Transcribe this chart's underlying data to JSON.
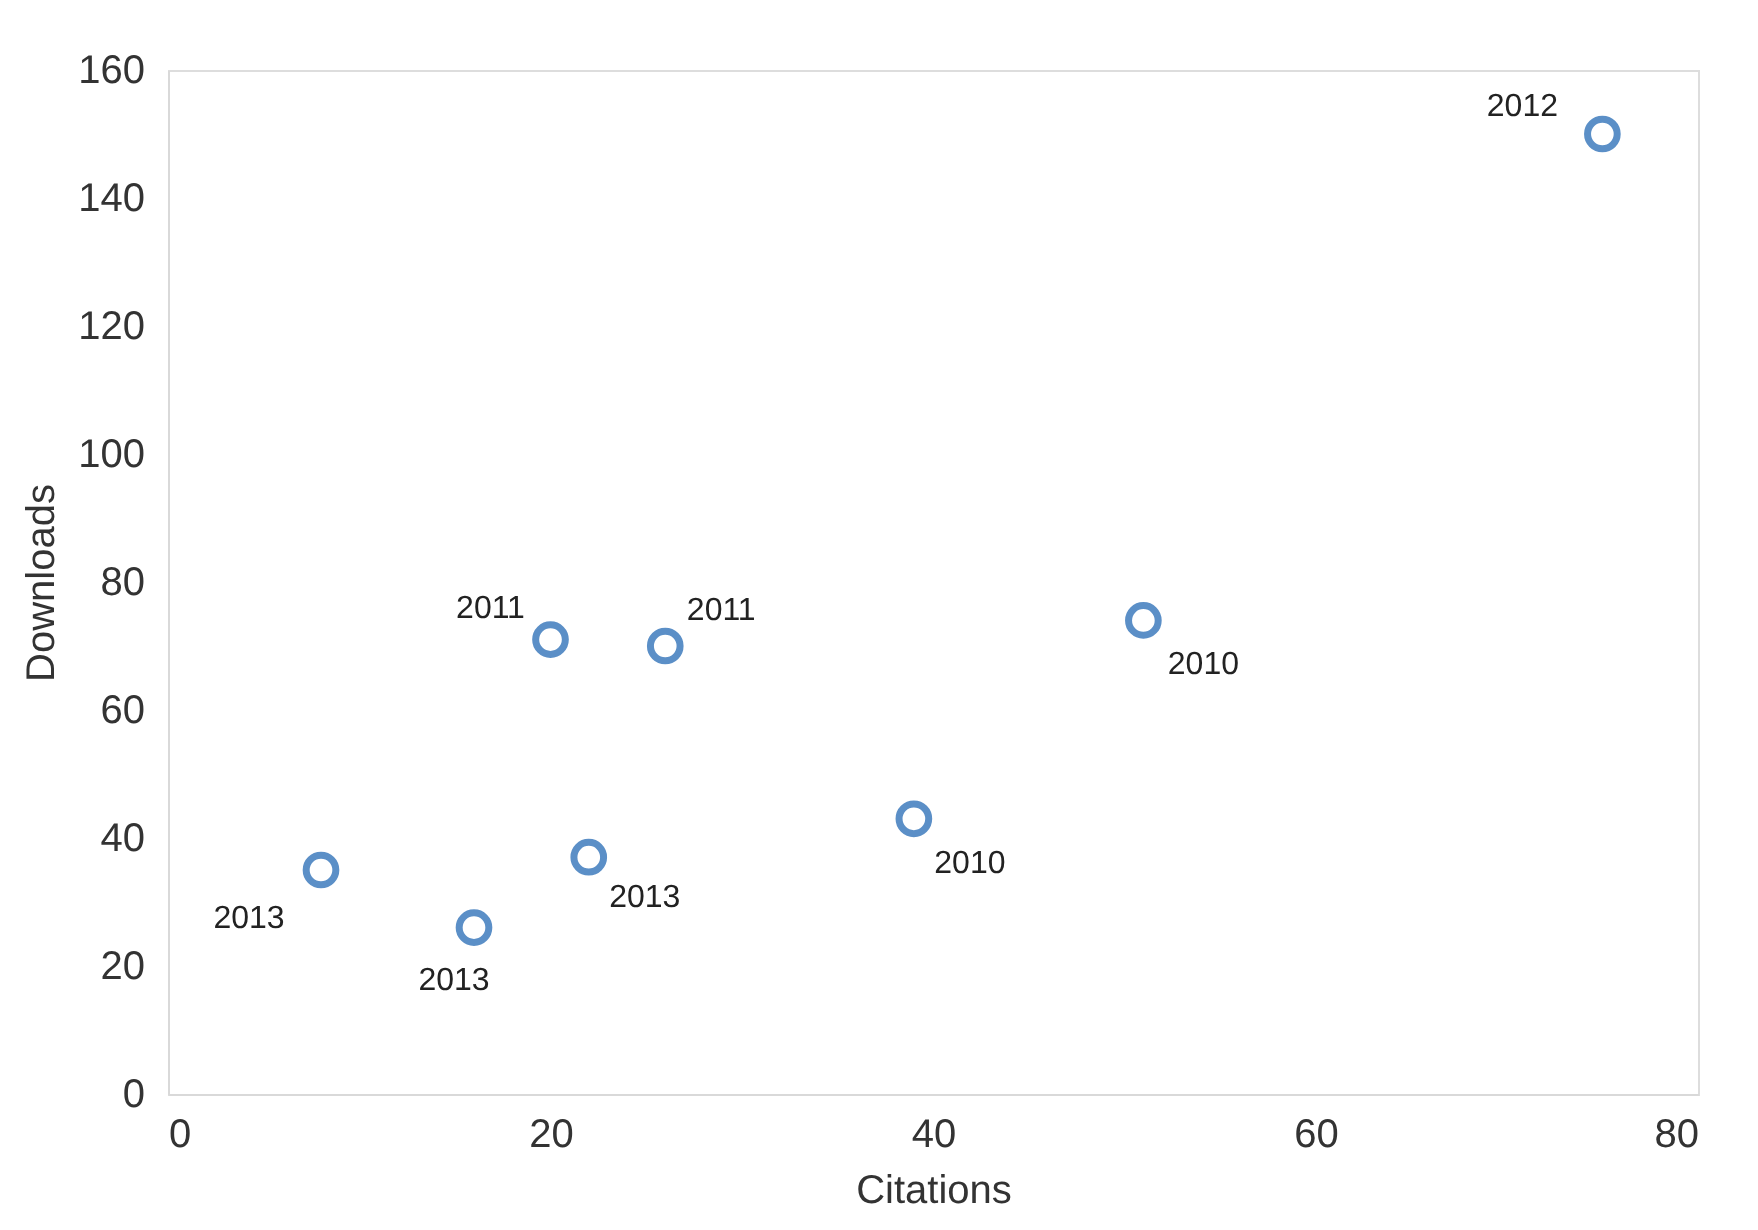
{
  "chart_data": {
    "type": "scatter",
    "xlabel": "Citations",
    "ylabel": "Downloads",
    "x": [
      8,
      16,
      22,
      20,
      26,
      39,
      51,
      75
    ],
    "series": [
      {
        "color": "#5b8fc7",
        "values": [
          35,
          26,
          37,
          71,
          70,
          43,
          74,
          150
        ]
      }
    ],
    "xlim": [
      0,
      80
    ],
    "xticks": [
      0,
      20,
      40,
      60,
      80
    ],
    "ylim": [
      0,
      160
    ],
    "yticks": [
      0,
      20,
      40,
      60,
      80,
      100,
      120,
      140,
      160
    ],
    "grid": false,
    "marker": "circle",
    "annotations": [
      {
        "text": "2013",
        "x": 8,
        "y": 35
      },
      {
        "text": "2013",
        "x": 16,
        "y": 26
      },
      {
        "text": "2013",
        "x": 22,
        "y": 37
      },
      {
        "text": "2011",
        "x": 20,
        "y": 71
      },
      {
        "text": "2011",
        "x": 26,
        "y": 70
      },
      {
        "text": "2010",
        "x": 39,
        "y": 43
      },
      {
        "text": "2010",
        "x": 51,
        "y": 74
      },
      {
        "text": "2012",
        "x": 75,
        "y": 150
      }
    ]
  }
}
